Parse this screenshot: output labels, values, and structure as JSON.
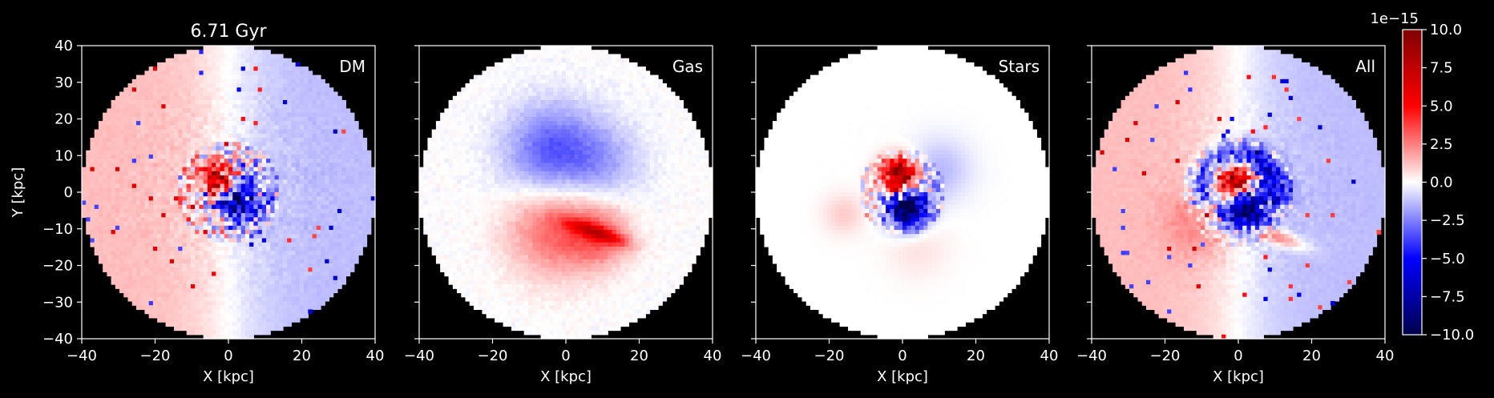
{
  "figure": {
    "time_title": "6.71 Gyr",
    "ylabel": "Y [kpc]",
    "xlabel": "X [kpc]",
    "background": "#000000",
    "foreground": "#ffffff"
  },
  "chart_data": {
    "type": "heatmap",
    "colormap": "seismic",
    "xlim": [
      -40,
      40
    ],
    "ylim": [
      -40,
      40
    ],
    "grid": false,
    "x_ticks": [
      -40,
      -20,
      0,
      20,
      40
    ],
    "y_ticks": [
      -40,
      -30,
      -20,
      -10,
      0,
      10,
      20,
      30,
      40
    ],
    "x_tick_labels": [
      "−40",
      "−20",
      "0",
      "20",
      "40"
    ],
    "y_tick_labels": [
      "−40",
      "−30",
      "−20",
      "−10",
      "0",
      "10",
      "20",
      "30",
      "40"
    ],
    "disk_radius_kpc": 40,
    "panels": [
      {
        "label": "DM",
        "note": "smooth dipole: positive on left side, negative on right side; noisy core with red blob at center-upper and blue below"
      },
      {
        "label": "Gas",
        "note": "negative region (blue) above center, positive region (red) below center with spiral-like filament"
      },
      {
        "label": "Stars",
        "note": "strong red blob just above center, strong blue blob just below center, faint outer arcs"
      },
      {
        "label": "All",
        "note": "combined: left-positive / right-negative dipole, blue ring above center, red blob core, red arc lower right"
      }
    ],
    "colorbar": {
      "min": -10.0,
      "max": 10.0,
      "ticks": [
        10.0,
        7.5,
        5.0,
        2.5,
        0.0,
        -2.5,
        -5.0,
        -7.5,
        -10.0
      ],
      "tick_labels": [
        "10.0",
        "7.5",
        "5.0",
        "2.5",
        "0.0",
        "−2.5",
        "−5.0",
        "−7.5",
        "−10.0"
      ],
      "offset_text": "1e−15"
    }
  }
}
